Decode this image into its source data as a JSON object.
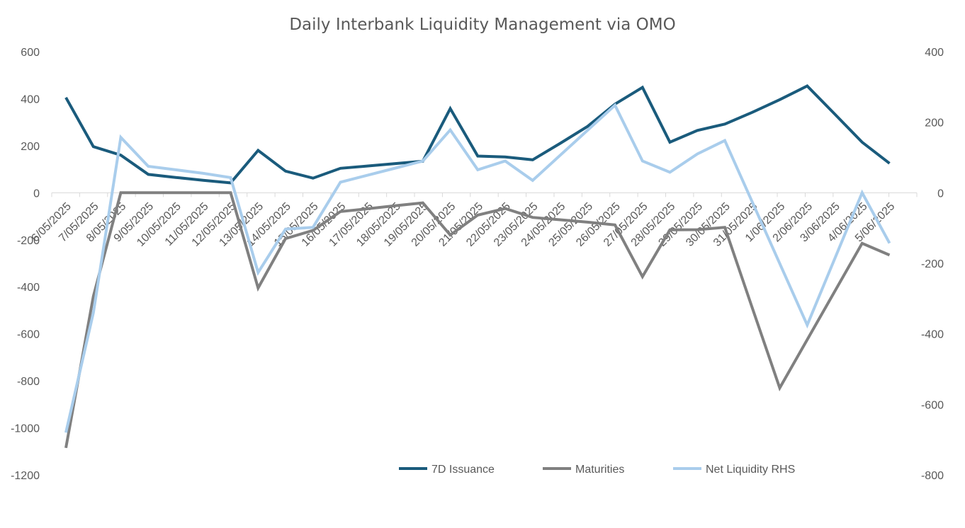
{
  "chart_data": {
    "type": "line",
    "title": "Daily Interbank Liquidity Management via OMO",
    "categories": [
      "6/05/2025",
      "7/05/2025",
      "8/05/2025",
      "9/05/2025",
      "10/05/2025",
      "11/05/2025",
      "12/05/2025",
      "13/05/2025",
      "14/05/2025",
      "15/05/2025",
      "16/05/2025",
      "17/05/2025",
      "18/05/2025",
      "19/05/2025",
      "20/05/2025",
      "21/05/2025",
      "22/05/2025",
      "23/05/2025",
      "24/05/2025",
      "25/05/2025",
      "26/05/2025",
      "27/05/2025",
      "28/05/2025",
      "29/05/2025",
      "30/05/2025",
      "31/05/2025",
      "1/06/2025",
      "2/06/2025",
      "3/06/2025",
      "4/06/2025",
      "5/06/2025"
    ],
    "y_left": {
      "min": -1200,
      "max": 600,
      "step": 200,
      "ticks": [
        "600",
        "400",
        "200",
        "0",
        "-200",
        "-400",
        "-600",
        "-800",
        "-1000",
        "-1200"
      ]
    },
    "y_right": {
      "min": -800,
      "max": 400,
      "step": 200,
      "ticks": [
        "400",
        "200",
        "0",
        "-200",
        "-400",
        "-600",
        "-800"
      ]
    },
    "series": [
      {
        "name": "7D Issuance",
        "axis": "left",
        "color": "#1a5b7c",
        "values": [
          405,
          196,
          160,
          78,
          65,
          53,
          42,
          180,
          92,
          62,
          104,
          114,
          124,
          134,
          358,
          156,
          152,
          140,
          210,
          282,
          377,
          448,
          215,
          265,
          292,
          342,
          396,
          454,
          335,
          215,
          125
        ]
      },
      {
        "name": "Maturities",
        "axis": "left",
        "color": "#808080",
        "values": [
          -1085,
          -440,
          0,
          0,
          0,
          0,
          0,
          -405,
          -195,
          -160,
          -80,
          -68,
          -55,
          -43,
          -180,
          -95,
          -67,
          -105,
          -115,
          -125,
          -137,
          -357,
          -158,
          -157,
          -147,
          -490,
          -830,
          null,
          null,
          -215,
          -265
        ]
      },
      {
        "name": "Net Liquidity RHS",
        "axis": "right",
        "color": "#a9cdec",
        "values": [
          -680,
          -340,
          157,
          75,
          65,
          55,
          43,
          -226,
          -103,
          -98,
          30,
          50,
          70,
          90,
          178,
          65,
          90,
          35,
          null,
          null,
          248,
          90,
          58,
          110,
          148,
          null,
          null,
          -375,
          null,
          0,
          -143
        ]
      }
    ],
    "legend": [
      "7D Issuance",
      "Maturities",
      "Net Liquidity RHS"
    ],
    "legend_position": "bottom-center",
    "grid": false
  }
}
